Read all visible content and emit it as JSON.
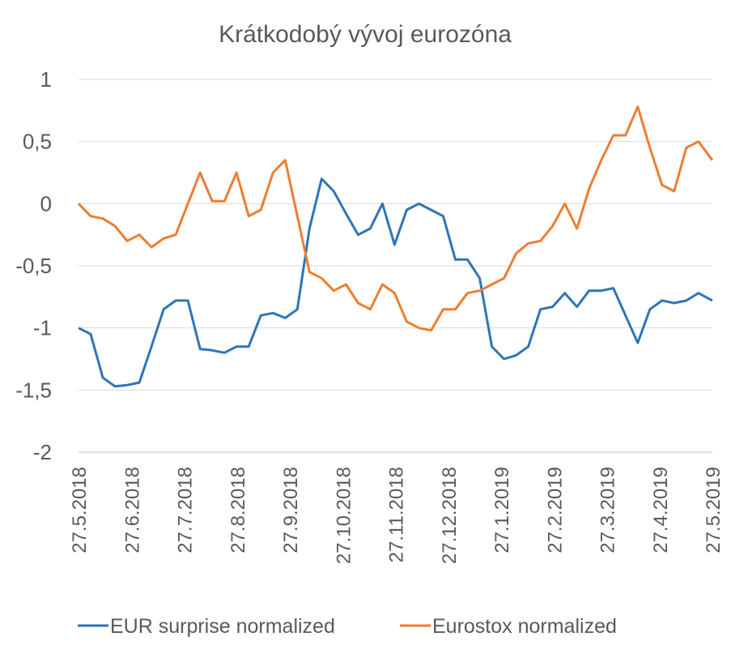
{
  "chart_data": {
    "type": "line",
    "title": "Krátkodobý vývoj eurozóna",
    "xlabel": "",
    "ylabel": "",
    "ylim": [
      -2,
      1
    ],
    "yticks": [
      "1",
      "0,5",
      "0",
      "-0,5",
      "-1",
      "-1,5",
      "-2"
    ],
    "ytick_values": [
      1,
      0.5,
      0,
      -0.5,
      -1,
      -1.5,
      -2
    ],
    "xticks": [
      "27.5.2018",
      "27.6.2018",
      "27.7.2018",
      "27.8.2018",
      "27.9.2018",
      "27.10.2018",
      "27.11.2018",
      "27.12.2018",
      "27.1.2019",
      "27.2.2019",
      "27.3.2019",
      "27.4.2019",
      "27.5.2019"
    ],
    "x": [
      "2018-05-27",
      "2018-06-03",
      "2018-06-10",
      "2018-06-17",
      "2018-06-24",
      "2018-07-01",
      "2018-07-08",
      "2018-07-15",
      "2018-07-22",
      "2018-07-29",
      "2018-08-05",
      "2018-08-12",
      "2018-08-19",
      "2018-08-26",
      "2018-09-02",
      "2018-09-09",
      "2018-09-16",
      "2018-09-23",
      "2018-09-30",
      "2018-10-07",
      "2018-10-14",
      "2018-10-21",
      "2018-10-28",
      "2018-11-04",
      "2018-11-11",
      "2018-11-18",
      "2018-11-25",
      "2018-12-02",
      "2018-12-09",
      "2018-12-16",
      "2018-12-23",
      "2018-12-30",
      "2019-01-06",
      "2019-01-13",
      "2019-01-20",
      "2019-01-27",
      "2019-02-03",
      "2019-02-10",
      "2019-02-17",
      "2019-02-24",
      "2019-03-03",
      "2019-03-10",
      "2019-03-17",
      "2019-03-24",
      "2019-03-31",
      "2019-04-07",
      "2019-04-14",
      "2019-04-21",
      "2019-04-28",
      "2019-05-05",
      "2019-05-12",
      "2019-05-19",
      "2019-05-27"
    ],
    "series": [
      {
        "name": "EUR surprise normalized",
        "color": "#2E75B6",
        "values": [
          -1.0,
          -1.05,
          -1.4,
          -1.47,
          -1.46,
          -1.44,
          -1.15,
          -0.85,
          -0.78,
          -0.78,
          -1.17,
          -1.18,
          -1.2,
          -1.15,
          -1.15,
          -0.9,
          -0.88,
          -0.92,
          -0.85,
          -0.2,
          0.2,
          0.1,
          -0.08,
          -0.25,
          -0.2,
          0.0,
          -0.33,
          -0.05,
          0.0,
          -0.05,
          -0.1,
          -0.45,
          -0.45,
          -0.6,
          -1.15,
          -1.25,
          -1.22,
          -1.15,
          -0.85,
          -0.83,
          -0.72,
          -0.83,
          -0.7,
          -0.7,
          -0.68,
          -0.9,
          -1.12,
          -0.85,
          -0.78,
          -0.8,
          -0.78,
          -0.72,
          -0.78
        ]
      },
      {
        "name": "Eurostox normalized",
        "color": "#ED7D31",
        "values": [
          0.0,
          -0.1,
          -0.12,
          -0.18,
          -0.3,
          -0.25,
          -0.35,
          -0.28,
          -0.25,
          0.0,
          0.25,
          0.02,
          0.02,
          0.25,
          -0.1,
          -0.05,
          0.25,
          0.35,
          -0.1,
          -0.55,
          -0.6,
          -0.7,
          -0.65,
          -0.8,
          -0.85,
          -0.65,
          -0.72,
          -0.95,
          -1.0,
          -1.02,
          -0.85,
          -0.85,
          -0.72,
          -0.7,
          -0.65,
          -0.6,
          -0.4,
          -0.32,
          -0.3,
          -0.18,
          0.0,
          -0.2,
          0.12,
          0.35,
          0.55,
          0.55,
          0.78,
          0.45,
          0.15,
          0.1,
          0.45,
          0.5,
          0.35
        ]
      }
    ],
    "legend": {
      "placement": "bottom",
      "entries": [
        "EUR surprise normalized",
        "Eurostox normalized"
      ]
    },
    "grid": true,
    "colors": {
      "gridline": "#D9D9D9",
      "text": "#595959",
      "axis": "#BFBFBF"
    }
  }
}
